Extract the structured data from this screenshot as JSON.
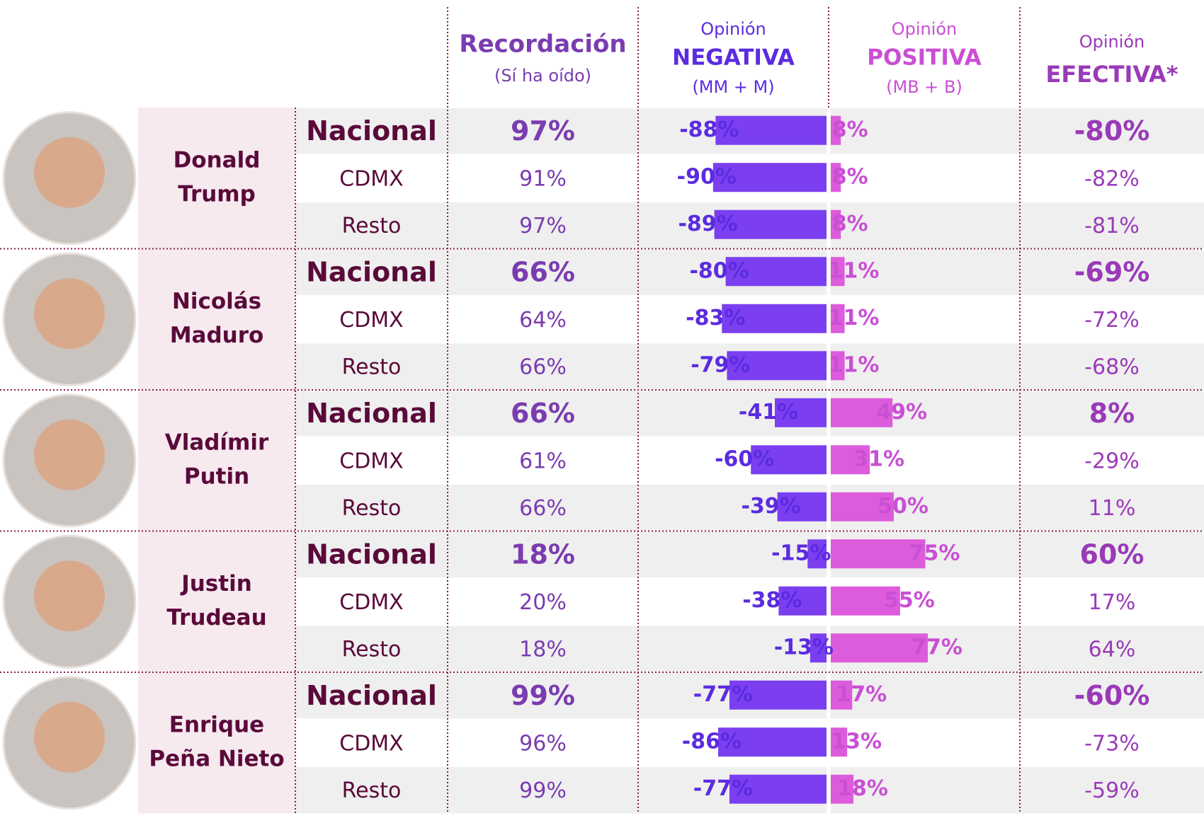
{
  "header": {
    "recall": {
      "title": "Recordación",
      "subtitle": "(Sí ha oído)"
    },
    "negative": {
      "pre": "Opinión",
      "title": "NEGATIVA",
      "subtitle": "(MM + M)"
    },
    "positive": {
      "pre": "Opinión",
      "title": "POSITIVA",
      "subtitle": "(MB + B)"
    },
    "effective": {
      "pre": "Opinión",
      "title": "EFECTIVA*"
    }
  },
  "people": [
    {
      "name": [
        "Donald",
        "Trump"
      ],
      "rows": [
        {
          "region": "Nacional",
          "recall": "97%",
          "negative": -88,
          "negative_label": "-88%",
          "positive": 8,
          "positive_label": "8%",
          "effective": "-80%"
        },
        {
          "region": "CDMX",
          "recall": "91%",
          "negative": -90,
          "negative_label": "-90%",
          "positive": 8,
          "positive_label": "8%",
          "effective": "-82%"
        },
        {
          "region": "Resto",
          "recall": "97%",
          "negative": -89,
          "negative_label": "-89%",
          "positive": 8,
          "positive_label": "8%",
          "effective": "-81%"
        }
      ]
    },
    {
      "name": [
        "Nicolás",
        "Maduro"
      ],
      "rows": [
        {
          "region": "Nacional",
          "recall": "66%",
          "negative": -80,
          "negative_label": "-80%",
          "positive": 11,
          "positive_label": "11%",
          "effective": "-69%"
        },
        {
          "region": "CDMX",
          "recall": "64%",
          "negative": -83,
          "negative_label": "-83%",
          "positive": 11,
          "positive_label": "11%",
          "effective": "-72%"
        },
        {
          "region": "Resto",
          "recall": "66%",
          "negative": -79,
          "negative_label": "-79%",
          "positive": 11,
          "positive_label": "11%",
          "effective": "-68%"
        }
      ]
    },
    {
      "name": [
        "Vladímir",
        "Putin"
      ],
      "rows": [
        {
          "region": "Nacional",
          "recall": "66%",
          "negative": -41,
          "negative_label": "-41%",
          "positive": 49,
          "positive_label": "49%",
          "effective": "8%"
        },
        {
          "region": "CDMX",
          "recall": "61%",
          "negative": -60,
          "negative_label": "-60%",
          "positive": 31,
          "positive_label": "31%",
          "effective": "-29%"
        },
        {
          "region": "Resto",
          "recall": "66%",
          "negative": -39,
          "negative_label": "-39%",
          "positive": 50,
          "positive_label": "50%",
          "effective": "11%"
        }
      ]
    },
    {
      "name": [
        "Justin",
        "Trudeau"
      ],
      "rows": [
        {
          "region": "Nacional",
          "recall": "18%",
          "negative": -15,
          "negative_label": "-15%",
          "positive": 75,
          "positive_label": "75%",
          "effective": "60%"
        },
        {
          "region": "CDMX",
          "recall": "20%",
          "negative": -38,
          "negative_label": "-38%",
          "positive": 55,
          "positive_label": "55%",
          "effective": "17%"
        },
        {
          "region": "Resto",
          "recall": "18%",
          "negative": -13,
          "negative_label": "-13%",
          "positive": 77,
          "positive_label": "77%",
          "effective": "64%"
        }
      ]
    },
    {
      "name": [
        "Enrique",
        "Peña Nieto"
      ],
      "rows": [
        {
          "region": "Nacional",
          "recall": "99%",
          "negative": -77,
          "negative_label": "-77%",
          "positive": 17,
          "positive_label": "17%",
          "effective": "-60%"
        },
        {
          "region": "CDMX",
          "recall": "96%",
          "negative": -86,
          "negative_label": "-86%",
          "positive": 13,
          "positive_label": "13%",
          "effective": "-73%"
        },
        {
          "region": "Resto",
          "recall": "99%",
          "negative": -77,
          "negative_label": "-77%",
          "positive": 18,
          "positive_label": "18%",
          "effective": "-59%"
        }
      ]
    }
  ]
}
